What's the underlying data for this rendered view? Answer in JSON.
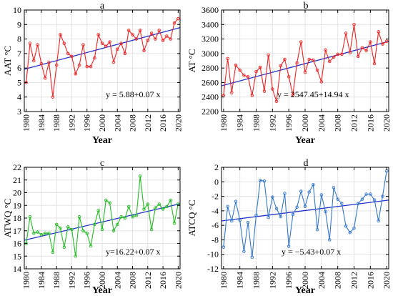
{
  "chart_data": [
    {
      "type": "line",
      "panel_label": "a",
      "ylabel": "AAT °C",
      "xlabel": "Year",
      "color": "#ee2222",
      "equation": "y = 5.88+0.07 x",
      "xlim": [
        1979.5,
        2020.5
      ],
      "ylim": [
        3,
        10
      ],
      "yticks": [
        3,
        4,
        5,
        6,
        7,
        8,
        9,
        10
      ],
      "xticks": [
        1980,
        1984,
        1988,
        1992,
        1996,
        2000,
        2004,
        2008,
        2012,
        2016,
        2020
      ],
      "trend": {
        "intercept": 5.88,
        "slope": 0.07
      },
      "x": [
        1980,
        1981,
        1982,
        1983,
        1984,
        1985,
        1986,
        1987,
        1988,
        1989,
        1990,
        1991,
        1992,
        1993,
        1994,
        1995,
        1996,
        1997,
        1998,
        1999,
        2000,
        2001,
        2002,
        2003,
        2004,
        2005,
        2006,
        2007,
        2008,
        2009,
        2010,
        2011,
        2012,
        2013,
        2014,
        2015,
        2016,
        2017,
        2018,
        2019,
        2020
      ],
      "values": [
        5.0,
        7.7,
        6.5,
        7.6,
        6.3,
        5.3,
        6.4,
        4.0,
        6.2,
        8.3,
        7.7,
        7.0,
        6.8,
        5.6,
        6.2,
        7.6,
        6.1,
        6.1,
        6.7,
        8.3,
        7.7,
        7.5,
        7.8,
        6.4,
        7.3,
        7.7,
        7.0,
        8.6,
        8.3,
        8.0,
        8.6,
        7.2,
        7.9,
        8.4,
        8.0,
        8.6,
        7.9,
        8.2,
        8.0,
        9.1,
        9.4
      ],
      "grid": true
    },
    {
      "type": "line",
      "panel_label": "b",
      "ylabel": "AT °C",
      "xlabel": "Year",
      "color": "#ee2222",
      "equation": "y = 2547.45+14.94 x",
      "xlim": [
        1979.5,
        2020.5
      ],
      "ylim": [
        2200,
        3600
      ],
      "yticks": [
        2200,
        2400,
        2600,
        2800,
        3000,
        3200,
        3400,
        3600
      ],
      "xticks": [
        1980,
        1984,
        1988,
        1992,
        1996,
        2000,
        2004,
        2008,
        2012,
        2016,
        2020
      ],
      "trend": {
        "intercept": 2547.45,
        "slope": 14.94
      },
      "x": [
        1980,
        1981,
        1982,
        1983,
        1984,
        1985,
        1986,
        1987,
        1988,
        1989,
        1990,
        1991,
        1992,
        1993,
        1994,
        1995,
        1996,
        1997,
        1998,
        1999,
        2000,
        2001,
        2002,
        2003,
        2004,
        2005,
        2006,
        2007,
        2008,
        2009,
        2010,
        2011,
        2012,
        2013,
        2014,
        2015,
        2016,
        2017,
        2018,
        2019,
        2020
      ],
      "values": [
        2420,
        2930,
        2460,
        2840,
        2770,
        2700,
        2680,
        2420,
        2750,
        2810,
        2480,
        2980,
        2510,
        2340,
        2830,
        2920,
        2680,
        2430,
        2870,
        3160,
        2740,
        2920,
        2910,
        2770,
        2610,
        3050,
        2890,
        2950,
        2990,
        2990,
        3280,
        3010,
        3400,
        2960,
        3080,
        3040,
        3160,
        2860,
        3300,
        3130,
        3170
      ],
      "grid": true
    },
    {
      "type": "line",
      "panel_label": "c",
      "ylabel": "ATWQ °C",
      "xlabel": "Year",
      "color": "#22bb22",
      "equation": "y=16.22+0.07 x",
      "xlim": [
        1979.5,
        2020.5
      ],
      "ylim": [
        14,
        22
      ],
      "yticks": [
        14,
        15,
        16,
        17,
        18,
        19,
        20,
        21,
        22
      ],
      "xticks": [
        1980,
        1984,
        1988,
        1992,
        1996,
        2000,
        2004,
        2008,
        2012,
        2016,
        2020
      ],
      "trend": {
        "intercept": 16.22,
        "slope": 0.07
      },
      "x": [
        1980,
        1981,
        1982,
        1983,
        1984,
        1985,
        1986,
        1987,
        1988,
        1989,
        1990,
        1991,
        1992,
        1993,
        1994,
        1995,
        1996,
        1997,
        1998,
        1999,
        2000,
        2001,
        2002,
        2003,
        2004,
        2005,
        2006,
        2007,
        2008,
        2009,
        2010,
        2011,
        2012,
        2013,
        2014,
        2015,
        2016,
        2017,
        2018,
        2019,
        2020
      ],
      "values": [
        16.0,
        18.1,
        16.8,
        16.9,
        16.7,
        16.8,
        16.8,
        15.3,
        17.5,
        17.2,
        15.7,
        17.3,
        17.1,
        15.0,
        18.1,
        17.0,
        16.8,
        15.8,
        17.5,
        18.6,
        17.1,
        19.4,
        19.2,
        17.0,
        17.5,
        18.1,
        18.0,
        18.9,
        18.1,
        18.2,
        21.3,
        18.7,
        19.1,
        17.1,
        18.8,
        19.1,
        18.7,
        18.9,
        19.4,
        17.6,
        19.1
      ],
      "grid": true
    },
    {
      "type": "line",
      "panel_label": "d",
      "ylabel": "ATCQ °C",
      "xlabel": "Year",
      "color": "#3377cc",
      "equation": "y = −5.43+0.07 x",
      "xlim": [
        1979.5,
        2020.5
      ],
      "ylim": [
        -12,
        2
      ],
      "yticks": [
        -12,
        -10,
        -8,
        -6,
        -4,
        -2,
        0,
        2
      ],
      "xticks": [
        1980,
        1984,
        1988,
        1992,
        1996,
        2000,
        2004,
        2008,
        2012,
        2016,
        2020
      ],
      "trend": {
        "intercept": -5.43,
        "slope": 0.07
      },
      "x": [
        1980,
        1981,
        1982,
        1983,
        1984,
        1985,
        1986,
        1987,
        1988,
        1989,
        1990,
        1991,
        1992,
        1993,
        1994,
        1995,
        1996,
        1997,
        1998,
        1999,
        2000,
        2001,
        2002,
        2003,
        2004,
        2005,
        2006,
        2007,
        2008,
        2009,
        2010,
        2011,
        2012,
        2013,
        2014,
        2015,
        2016,
        2017,
        2018,
        2019,
        2020
      ],
      "values": [
        -9.0,
        -3.4,
        -5.4,
        -2.7,
        -5.3,
        -9.6,
        -5.6,
        -10.4,
        -4.6,
        0.2,
        0.1,
        -4.9,
        -2.1,
        -3.7,
        -4.8,
        -1.6,
        -8.9,
        -4.5,
        -3.5,
        -1.3,
        -3.4,
        -1.4,
        -0.4,
        -6.6,
        -1.8,
        -4.1,
        -8.0,
        -0.8,
        -2.4,
        -3.0,
        -6.1,
        -7.0,
        -6.4,
        -3.0,
        -2.4,
        -1.7,
        -1.7,
        -2.5,
        -5.4,
        -2.0,
        1.5
      ],
      "grid": true
    }
  ]
}
